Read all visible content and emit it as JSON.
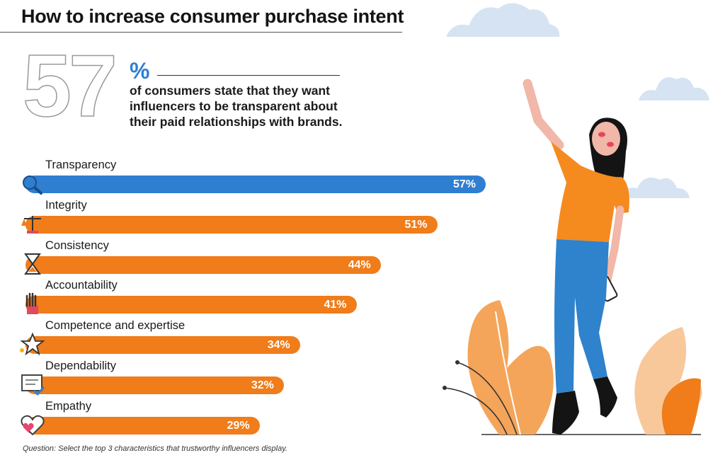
{
  "title": "How to increase consumer purchase intent",
  "headline_stat": {
    "number": "57",
    "percent_sign": "%",
    "text": "of consumers state that they want influencers to be transparent about their paid relationships with brands."
  },
  "chart_data": {
    "type": "bar",
    "orientation": "horizontal",
    "title": "",
    "categories": [
      "Transparency",
      "Integrity",
      "Consistency",
      "Accountability",
      "Competence and expertise",
      "Dependability",
      "Empathy"
    ],
    "values": [
      57,
      51,
      44,
      41,
      34,
      32,
      29
    ],
    "value_labels": [
      "57%",
      "51%",
      "44%",
      "41%",
      "34%",
      "32%",
      "29%"
    ],
    "colors": [
      "#2f7fd1",
      "#f07c1a",
      "#f07c1a",
      "#f07c1a",
      "#f07c1a",
      "#f07c1a",
      "#f07c1a"
    ],
    "icons": [
      "magnifier-icon",
      "scales-icon",
      "hourglass-icon",
      "hand-icon",
      "star-icon",
      "checklist-icon",
      "heart-icon"
    ],
    "xlim": [
      0,
      57
    ],
    "grid": false,
    "legend": "none"
  },
  "footnote": "Question: Select the top 3 characteristics that trustworthy influencers display."
}
